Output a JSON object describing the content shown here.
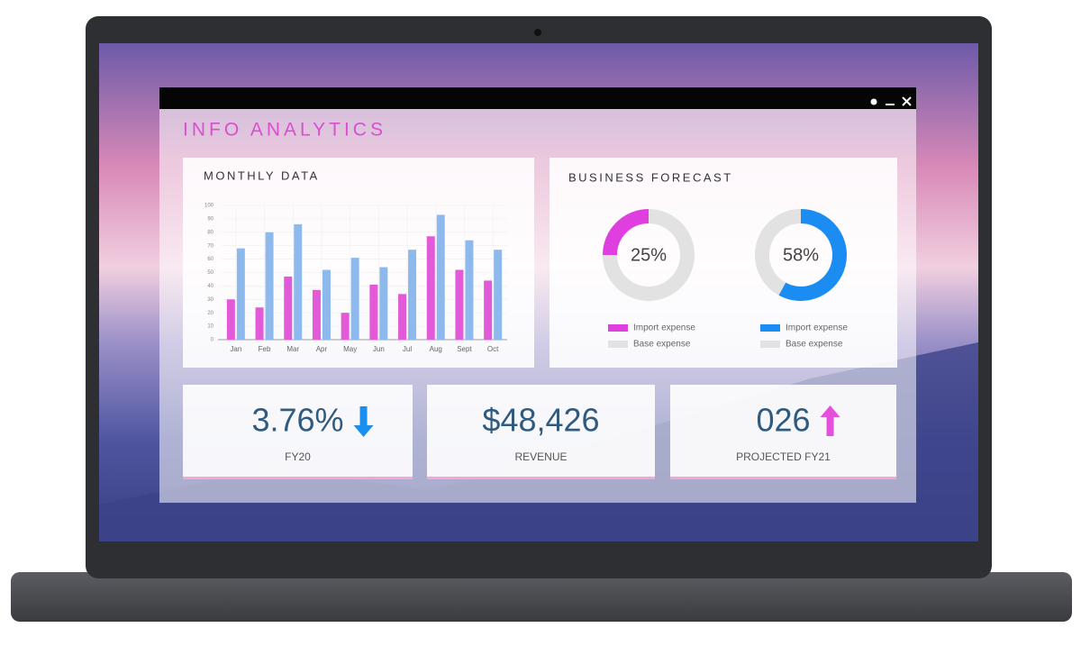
{
  "window": {
    "title": "INFO ANALYTICS"
  },
  "forecast_panel": {
    "title": "BUSINESS FORECAST"
  },
  "chart_data": [
    {
      "type": "bar",
      "title": "MONTHLY DATA",
      "categories": [
        "Jan",
        "Feb",
        "Mar",
        "Apr",
        "May",
        "Jun",
        "Jul",
        "Aug",
        "Sept",
        "Oct"
      ],
      "series": [
        {
          "color": "#e35ad9",
          "values": [
            30,
            24,
            47,
            37,
            20,
            41,
            34,
            77,
            52,
            44
          ]
        },
        {
          "color": "#8db9ec",
          "values": [
            68,
            80,
            86,
            52,
            61,
            54,
            67,
            93,
            74,
            67
          ]
        }
      ],
      "ylim": [
        0,
        100
      ],
      "yticks": [
        0,
        10,
        20,
        30,
        40,
        50,
        60,
        70,
        80,
        90,
        100
      ],
      "grid": true
    },
    {
      "type": "pie",
      "categories": [
        "Import expense",
        "Base expense"
      ],
      "values": [
        25,
        75
      ],
      "value_labels": [
        "25%",
        null
      ],
      "colors": [
        "#e03fe0",
        "#e2e2e2"
      ],
      "clockwise": false
    },
    {
      "type": "pie",
      "categories": [
        "Import expense",
        "Base expense"
      ],
      "values": [
        58,
        42
      ],
      "value_labels": [
        "58%",
        null
      ],
      "colors": [
        "#1b8df2",
        "#e2e2e2"
      ],
      "clockwise": true
    }
  ],
  "kpis": [
    {
      "value": "3.76%",
      "label": "FY20"
    },
    {
      "value": "$48,426",
      "label": "REVENUE"
    },
    {
      "value": "026",
      "label": "PROJECTED FY21"
    }
  ]
}
